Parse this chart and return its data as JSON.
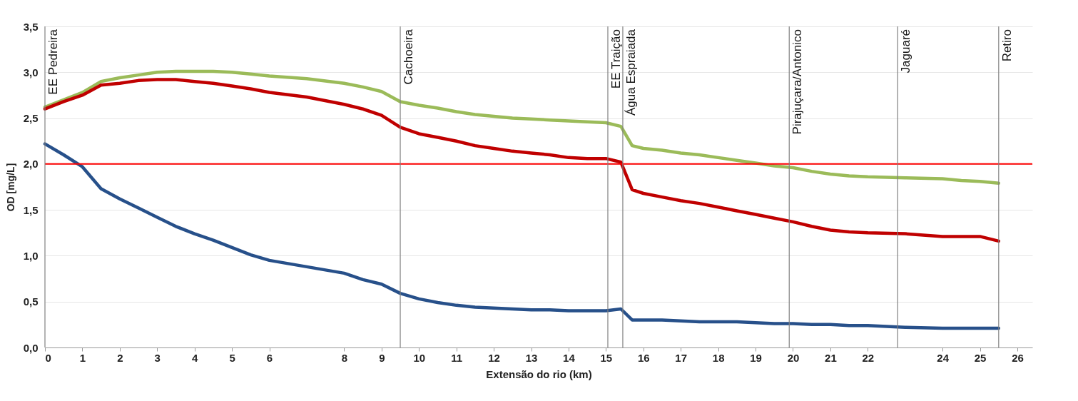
{
  "chart_data": {
    "type": "line",
    "xlabel": "Extensão do rio (km)",
    "ylabel": "OD [mg/L]",
    "x": [
      0,
      0.5,
      1,
      1.5,
      2,
      2.5,
      3,
      3.5,
      4,
      4.5,
      5,
      5.5,
      6,
      7,
      8,
      8.5,
      9,
      9.5,
      10,
      10.5,
      11,
      11.5,
      12,
      12.5,
      13,
      13.5,
      14,
      14.5,
      15,
      15.4,
      15.7,
      16,
      16.5,
      17,
      17.5,
      18,
      18.5,
      19,
      19.5,
      20,
      20.5,
      21,
      21.5,
      22,
      23,
      24,
      24.5,
      25,
      25.5
    ],
    "series": [
      {
        "color": "#9bbb59",
        "values": [
          2.62,
          2.7,
          2.78,
          2.9,
          2.94,
          2.97,
          3.0,
          3.01,
          3.01,
          3.01,
          3.0,
          2.98,
          2.96,
          2.93,
          2.88,
          2.84,
          2.79,
          2.68,
          2.64,
          2.61,
          2.57,
          2.54,
          2.52,
          2.5,
          2.49,
          2.48,
          2.47,
          2.46,
          2.45,
          2.41,
          2.2,
          2.17,
          2.15,
          2.12,
          2.1,
          2.07,
          2.04,
          2.01,
          1.98,
          1.96,
          1.92,
          1.89,
          1.87,
          1.86,
          1.85,
          1.84,
          1.82,
          1.81,
          1.79
        ]
      },
      {
        "color": "#c00000",
        "values": [
          2.6,
          2.68,
          2.75,
          2.86,
          2.88,
          2.91,
          2.92,
          2.92,
          2.9,
          2.88,
          2.85,
          2.82,
          2.78,
          2.73,
          2.65,
          2.6,
          2.53,
          2.4,
          2.33,
          2.29,
          2.25,
          2.2,
          2.17,
          2.14,
          2.12,
          2.1,
          2.07,
          2.06,
          2.06,
          2.02,
          1.72,
          1.68,
          1.64,
          1.6,
          1.57,
          1.53,
          1.49,
          1.45,
          1.41,
          1.37,
          1.32,
          1.28,
          1.26,
          1.25,
          1.24,
          1.21,
          1.21,
          1.21,
          1.16
        ]
      },
      {
        "color": "#27508a",
        "values": [
          2.22,
          2.1,
          1.97,
          1.73,
          1.62,
          1.52,
          1.42,
          1.32,
          1.24,
          1.17,
          1.09,
          1.01,
          0.95,
          0.88,
          0.81,
          0.74,
          0.69,
          0.59,
          0.53,
          0.49,
          0.46,
          0.44,
          0.43,
          0.42,
          0.41,
          0.41,
          0.4,
          0.4,
          0.4,
          0.42,
          0.3,
          0.3,
          0.3,
          0.29,
          0.28,
          0.28,
          0.28,
          0.27,
          0.26,
          0.26,
          0.25,
          0.25,
          0.24,
          0.24,
          0.22,
          0.21,
          0.21,
          0.21,
          0.21
        ]
      }
    ],
    "xlim": [
      0,
      26.4
    ],
    "xticks": [
      0,
      1,
      2,
      3,
      4,
      5,
      6,
      8,
      9,
      10,
      11,
      12,
      13,
      14,
      15,
      16,
      17,
      18,
      19,
      20,
      21,
      22,
      24,
      25,
      26
    ],
    "ylim": [
      0,
      3.5
    ],
    "yticks": [
      {
        "value": 0,
        "label": "0,0"
      },
      {
        "value": 0.5,
        "label": "0,5"
      },
      {
        "value": 1,
        "label": "1,0"
      },
      {
        "value": 1.5,
        "label": "1,5"
      },
      {
        "value": 2,
        "label": "2,0"
      },
      {
        "value": 2.5,
        "label": "2,5"
      },
      {
        "value": 3,
        "label": "3,0"
      },
      {
        "value": 3.5,
        "label": "3,5"
      }
    ],
    "grid": "y",
    "ref_lines": [
      {
        "axis": "y",
        "value": 2,
        "color": "#ff0000"
      },
      {
        "axis": "x",
        "value": 0,
        "label": "EE Pedreira",
        "color": "#808080"
      },
      {
        "axis": "x",
        "value": 9.5,
        "label": "Cachoeira",
        "color": "#808080"
      },
      {
        "axis": "x",
        "value": 15.05,
        "label": "EE Traição",
        "color": "#808080"
      },
      {
        "axis": "x",
        "value": 15.45,
        "label": "Água Espraiada",
        "color": "#808080"
      },
      {
        "axis": "x",
        "value": 19.9,
        "label": "Pirajuçara/Antonico",
        "color": "#808080"
      },
      {
        "axis": "x",
        "value": 22.8,
        "label": "Jaguaré",
        "color": "#808080"
      },
      {
        "axis": "x",
        "value": 25.5,
        "label": "Retiro",
        "color": "#808080"
      }
    ]
  }
}
